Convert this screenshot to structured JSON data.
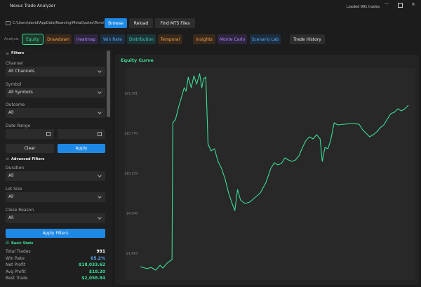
{
  "window": {
    "title": "Nexus Trade Analyzer",
    "status": "Loaded 991 trades."
  },
  "toolbar": {
    "path": "C:\\Users\\david\\AppData\\Roaming\\MetaQuotes\\Termin...",
    "buttons": [
      "Browse",
      "Reload",
      "Find MT5 Files"
    ]
  },
  "tabs": {
    "label": "Analysis",
    "items": [
      "Equity",
      "Drawdown",
      "Heatmap",
      "Win Rate",
      "Distribution",
      "Temporal",
      "Insights",
      "Monte Carlo",
      "Scenario Lab",
      "Trade History"
    ]
  },
  "filters": {
    "title": "Filters",
    "fields": [
      {
        "label": "Channel",
        "value": "All Channels"
      },
      {
        "label": "Symbol",
        "value": "All Symbols"
      },
      {
        "label": "Outcome",
        "value": "All"
      }
    ],
    "date_range": "Date Range",
    "buttons": [
      "Clear",
      "Apply"
    ]
  },
  "advanced_filters": {
    "title": "Advanced Filters",
    "fields": [
      {
        "label": "Duration",
        "value": "All"
      },
      {
        "label": "Lot Size",
        "value": "All"
      },
      {
        "label": "Close Reason",
        "value": "All"
      }
    ],
    "button": "Apply Filters"
  },
  "basic_stats": {
    "title": "Basic Stats",
    "rows": [
      [
        "Total Trades",
        "991"
      ],
      [
        "Win Rate",
        "65.2%"
      ],
      [
        "Net Profit",
        "$18,033.62"
      ],
      [
        "Avg Profit",
        "$18.20"
      ],
      [
        "Best Trade",
        "$2,058.84"
      ]
    ]
  },
  "chart_data": {
    "type": "line",
    "title": "Equity Curve",
    "color": "#3ddc97",
    "x": [
      0,
      26,
      39,
      57,
      73,
      83,
      99,
      109,
      117,
      120,
      130,
      143,
      151,
      162,
      169,
      177,
      188,
      198,
      208,
      219,
      227,
      234,
      242,
      250,
      261,
      274,
      287,
      300,
      313,
      326,
      339,
      349,
      359,
      370,
      386,
      404,
      422,
      443,
      464,
      482,
      495,
      508,
      521,
      534,
      547,
      560,
      573,
      586,
      599,
      612,
      625,
      638,
      651,
      664,
      672,
      682,
      693,
      703,
      716,
      729,
      755,
      782,
      808,
      821,
      834,
      847,
      860,
      873,
      886,
      899,
      912,
      925,
      938,
      951,
      964,
      977,
      990
    ],
    "values": [
      -2934,
      -3229,
      -3032,
      -3426,
      -2737,
      -3131,
      -2442,
      -2147,
      -1950,
      17247,
      17739,
      19708,
      20692,
      22169,
      21676,
      23645,
      22169,
      23842,
      22661,
      24137,
      22169,
      23448,
      23645,
      14293,
      13309,
      13604,
      11832,
      10848,
      9371,
      7402,
      5926,
      4941,
      7895,
      6418,
      5926,
      6123,
      6714,
      7402,
      8879,
      10848,
      11635,
      11340,
      11537,
      12325,
      12029,
      11832,
      12029,
      12620,
      13801,
      14785,
      15277,
      14982,
      15572,
      14982,
      11832,
      13801,
      13604,
      14785,
      17247,
      16951,
      17050,
      17148,
      17050,
      16262,
      15770,
      15277,
      15572,
      15967,
      16557,
      16951,
      17739,
      18526,
      18723,
      19216,
      18920,
      19216,
      19708
    ],
    "xlim": [
      0,
      990
    ],
    "ylim": [
      -4115,
      24630
    ],
    "yticks": [
      {
        "value": 21381,
        "label": "$21,381"
      },
      {
        "value": 15770,
        "label": "$15,770"
      },
      {
        "value": 10159,
        "label": "$10,159"
      },
      {
        "value": 4548,
        "label": "$4,548"
      },
      {
        "value": -1063,
        "label": "-$1,063"
      }
    ]
  }
}
